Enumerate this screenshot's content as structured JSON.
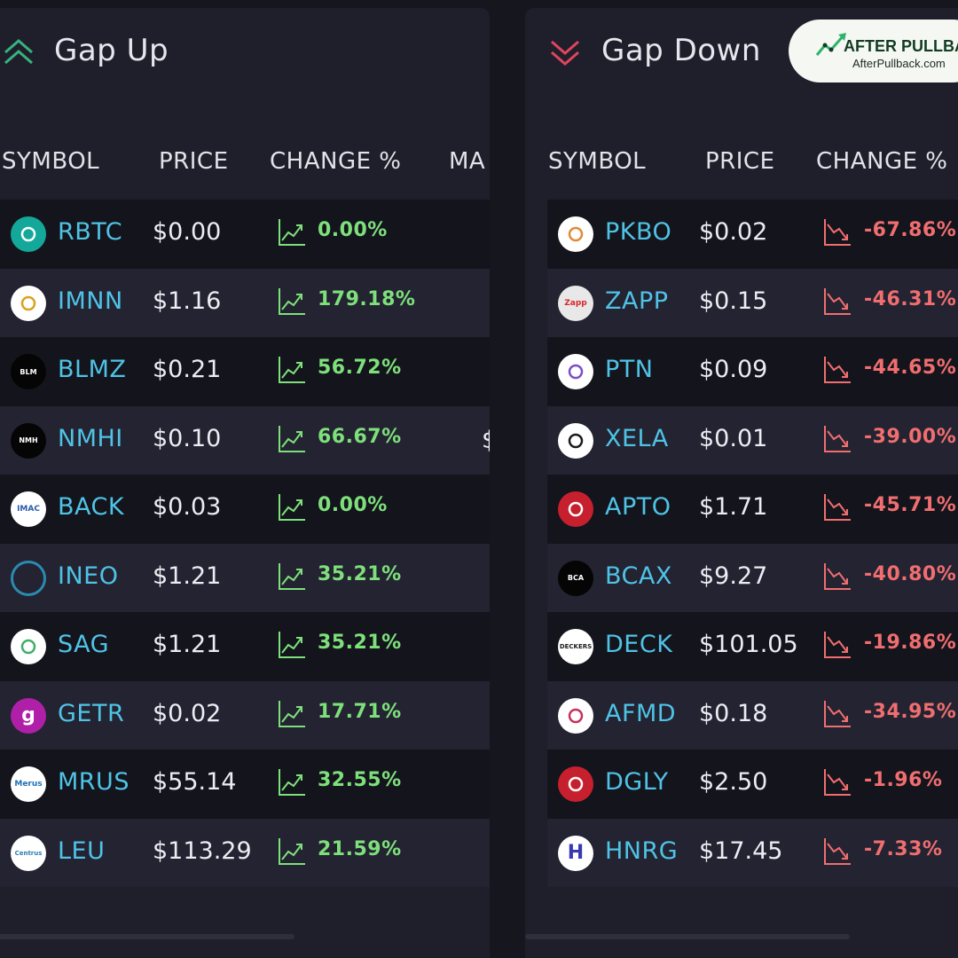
{
  "gap_up": {
    "title": "Gap Up",
    "columns": [
      "SYMBOL",
      "PRICE",
      "CHANGE %",
      "MA"
    ],
    "rows": [
      {
        "symbol": "RBTC",
        "price": "$0.00",
        "change": "0.00%",
        "logo": "rbtc-logo",
        "logo_text": "",
        "logo_bg": "#14a89a",
        "logo_fg": "#ffffff"
      },
      {
        "symbol": "IMNN",
        "price": "$1.16",
        "change": "179.18%",
        "logo": "imnn-logo",
        "logo_text": "",
        "logo_bg": "#ffffff",
        "logo_fg": "#d9a21b"
      },
      {
        "symbol": "BLMZ",
        "price": "$0.21",
        "change": "56.72%",
        "logo": "blmz-logo",
        "logo_text": "BLM",
        "logo_bg": "#050505",
        "logo_fg": "#ffffff"
      },
      {
        "symbol": "NMHI",
        "price": "$0.10",
        "change": "66.67%",
        "logo": "nmhi-logo",
        "logo_text": "NMH",
        "logo_bg": "#050505",
        "logo_fg": "#ffffff"
      },
      {
        "symbol": "BACK",
        "price": "$0.03",
        "change": "0.00%",
        "logo": "back-logo",
        "logo_text": "IMAC",
        "logo_bg": "#ffffff",
        "logo_fg": "#2b5aa8"
      },
      {
        "symbol": "INEO",
        "price": "$1.21",
        "change": "35.21%",
        "logo": "ineo-logo",
        "logo_text": "",
        "logo_bg": "transparent",
        "logo_fg": "#2a8ab0"
      },
      {
        "symbol": "SAG",
        "price": "$1.21",
        "change": "35.21%",
        "logo": "sag-logo",
        "logo_text": "",
        "logo_bg": "#ffffff",
        "logo_fg": "#3fae6a"
      },
      {
        "symbol": "GETR",
        "price": "$0.02",
        "change": "17.71%",
        "logo": "getr-logo",
        "logo_text": "g",
        "logo_bg": "#b01fa8",
        "logo_fg": "#ffffff"
      },
      {
        "symbol": "MRUS",
        "price": "$55.14",
        "change": "32.55%",
        "logo": "mrus-logo",
        "logo_text": "Merus",
        "logo_bg": "#ffffff",
        "logo_fg": "#1f6fb5"
      },
      {
        "symbol": "LEU",
        "price": "$113.29",
        "change": "21.59%",
        "logo": "leu-logo",
        "logo_text": "Centrus",
        "logo_bg": "#ffffff",
        "logo_fg": "#2b7fb3"
      }
    ],
    "partial_cell": "$"
  },
  "gap_down": {
    "title": "Gap Down",
    "columns": [
      "SYMBOL",
      "PRICE",
      "CHANGE %"
    ],
    "rows": [
      {
        "symbol": "PKBO",
        "price": "$0.02",
        "change": "-67.86%",
        "logo": "pkbo-logo",
        "logo_text": "",
        "logo_bg": "#ffffff",
        "logo_fg": "#e08a3a"
      },
      {
        "symbol": "ZAPP",
        "price": "$0.15",
        "change": "-46.31%",
        "logo": "zapp-logo",
        "logo_text": "Zapp",
        "logo_bg": "#e8e8e8",
        "logo_fg": "#d7262d"
      },
      {
        "symbol": "PTN",
        "price": "$0.09",
        "change": "-44.65%",
        "logo": "ptn-logo",
        "logo_text": "",
        "logo_bg": "#ffffff",
        "logo_fg": "#7b4fc6"
      },
      {
        "symbol": "XELA",
        "price": "$0.01",
        "change": "-39.00%",
        "logo": "xela-logo",
        "logo_text": "",
        "logo_bg": "#ffffff",
        "logo_fg": "#1a1a1a"
      },
      {
        "symbol": "APTO",
        "price": "$1.71",
        "change": "-45.71%",
        "logo": "apto-logo",
        "logo_text": "",
        "logo_bg": "#c6202e",
        "logo_fg": "#ffffff"
      },
      {
        "symbol": "BCAX",
        "price": "$9.27",
        "change": "-40.80%",
        "logo": "bcax-logo",
        "logo_text": "BCA",
        "logo_bg": "#050505",
        "logo_fg": "#ffffff"
      },
      {
        "symbol": "DECK",
        "price": "$101.05",
        "change": "-19.86%",
        "logo": "deck-logo",
        "logo_text": "DECKERS",
        "logo_bg": "#ffffff",
        "logo_fg": "#1a1a1a"
      },
      {
        "symbol": "AFMD",
        "price": "$0.18",
        "change": "-34.95%",
        "logo": "afmd-logo",
        "logo_text": "",
        "logo_bg": "#ffffff",
        "logo_fg": "#c8305c"
      },
      {
        "symbol": "DGLY",
        "price": "$2.50",
        "change": "-1.96%",
        "logo": "dgly-logo",
        "logo_text": "",
        "logo_bg": "#c6202e",
        "logo_fg": "#ffffff"
      },
      {
        "symbol": "HNRG",
        "price": "$17.45",
        "change": "-7.33%",
        "logo": "hnrg-logo",
        "logo_text": "H",
        "logo_bg": "#ffffff",
        "logo_fg": "#3a3ab0"
      }
    ]
  },
  "badge": {
    "brand": "AFTER PULLBACK",
    "url": "AfterPullback.com"
  },
  "colors": {
    "up": "#7ee07b",
    "down": "#f06e70",
    "symbol": "#4fc3e6",
    "panel": "#1f1f2b",
    "row_dark": "#14141c",
    "row_light": "#232331"
  }
}
